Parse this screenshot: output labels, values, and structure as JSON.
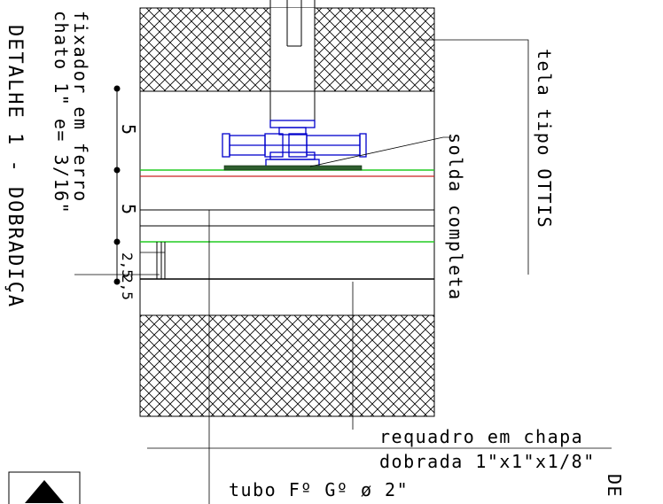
{
  "title": "DETALHE 1 - DOBRADIÇA",
  "labels": {
    "fixador_line1": "fixador em ferro",
    "fixador_line2": "chato 1\" e= 3/16\"",
    "tela": "tela tipo OTTIS",
    "solda": "solda completa",
    "requadro_line1": "requadro em chapa",
    "requadro_line2": "dobrada 1\"x1\"x1/8\"",
    "tubo": "tubo Fº Gº ø 2\"",
    "section_mark": "DE"
  },
  "dimensions": [
    "5",
    "5",
    "2,5",
    "2,5"
  ],
  "colors": {
    "line": "#000000",
    "hinge": "#0000cc",
    "green_line": "#22cc22",
    "red_line": "#cc2222",
    "plate": "#2e5e2e"
  }
}
